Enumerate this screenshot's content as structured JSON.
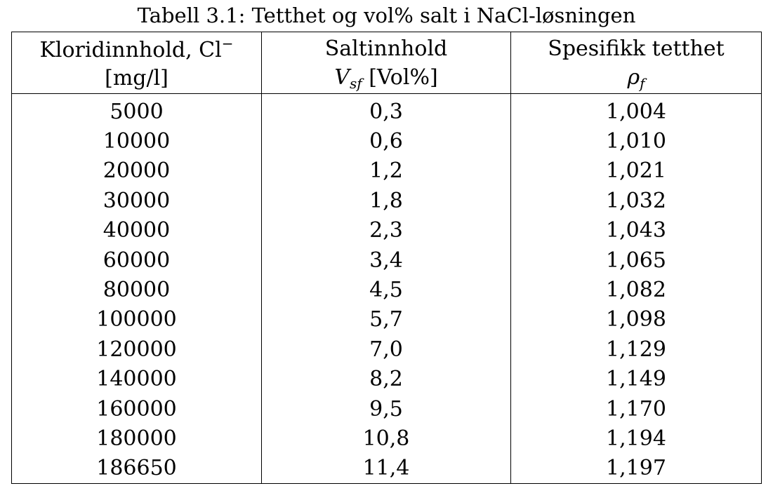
{
  "caption": "Tabell 3.1: Tetthet og vol% salt i NaCl-løsningen",
  "headers": {
    "col1": {
      "line1": "Kloridinnhold, Cl",
      "line1_sup": "−",
      "line2": "[mg/l]"
    },
    "col2": {
      "line1": "Saltinnhold",
      "symbol": "V",
      "symbol_sub": "sf",
      "unit": " [Vol%]"
    },
    "col3": {
      "line1": "Spesifikk tetthet",
      "symbol": "ρ",
      "symbol_sub": "f"
    }
  },
  "rows": [
    [
      "5000",
      "0,3",
      "1,004"
    ],
    [
      "10000",
      "0,6",
      "1,010"
    ],
    [
      "20000",
      "1,2",
      "1,021"
    ],
    [
      "30000",
      "1,8",
      "1,032"
    ],
    [
      "40000",
      "2,3",
      "1,043"
    ],
    [
      "60000",
      "3,4",
      "1,065"
    ],
    [
      "80000",
      "4,5",
      "1,082"
    ],
    [
      "100000",
      "5,7",
      "1,098"
    ],
    [
      "120000",
      "7,0",
      "1,129"
    ],
    [
      "140000",
      "8,2",
      "1,149"
    ],
    [
      "160000",
      "9,5",
      "1,170"
    ],
    [
      "180000",
      "10,8",
      "1,194"
    ],
    [
      "186650",
      "11,4",
      "1,197"
    ]
  ]
}
